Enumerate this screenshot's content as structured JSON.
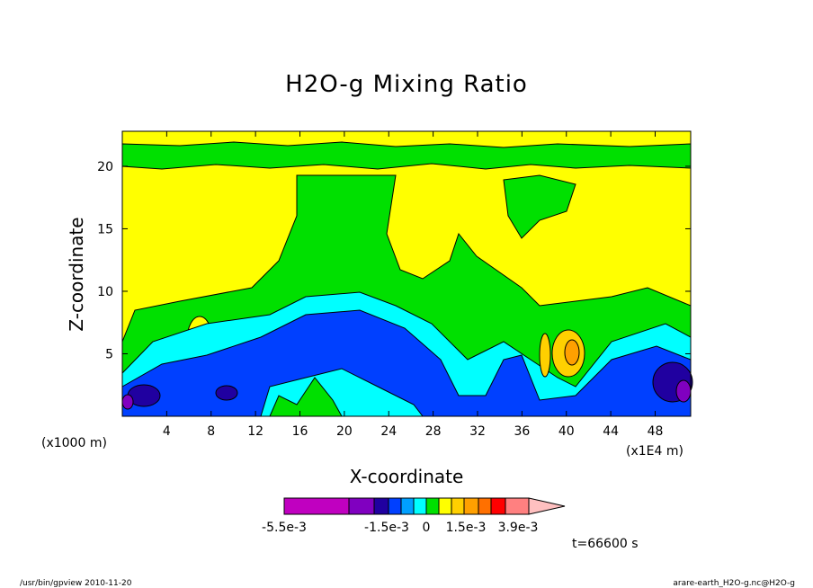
{
  "chart_data": {
    "type": "contour",
    "title": "H2O-g Mixing Ratio",
    "x_label": "X-coordinate",
    "y_label": "Z-coordinate",
    "x_unit_left": "(x1000 m)",
    "x_unit_right": "(x1E4 m)",
    "xlim": [
      0,
      51.2
    ],
    "ylim": [
      0,
      22.8
    ],
    "xticks": [
      4,
      8,
      12,
      16,
      20,
      24,
      28,
      32,
      36,
      40,
      44,
      48
    ],
    "yticks": [
      5,
      10,
      15,
      20
    ],
    "colorbar": {
      "colors": [
        "#c000c0",
        "#8000c0",
        "#2000a0",
        "#0040ff",
        "#00a0ff",
        "#00ffff",
        "#00e000",
        "#ffff00",
        "#ffd000",
        "#ffa000",
        "#ff7000",
        "#ff0000",
        "#ff8080",
        "#ffc0c0"
      ],
      "labels": [
        "-5.5e-3",
        "-1.5e-3",
        "0",
        "1.5e-3",
        "3.9e-3"
      ]
    },
    "time_label": "t=66600 s",
    "footer_left": "/usr/bin/gpview  2010-11-20",
    "footer_right": "arare-earth_H2O-g.nc@H2O-g"
  }
}
